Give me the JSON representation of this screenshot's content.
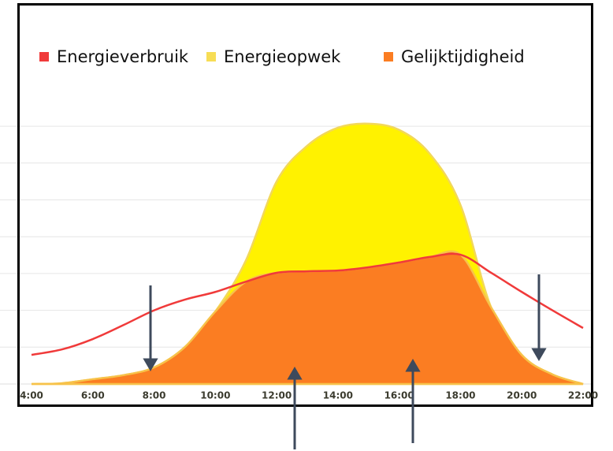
{
  "chart_data": {
    "type": "area",
    "x": [
      4,
      5,
      6,
      7,
      8,
      9,
      10,
      11,
      12,
      13,
      14,
      15,
      16,
      17,
      18,
      19,
      20,
      21,
      22
    ],
    "series": [
      {
        "name": "Energieverbruik",
        "color": "#f03a3a",
        "kind": "line",
        "values": [
          0.79,
          0.94,
          1.22,
          1.6,
          2.0,
          2.29,
          2.5,
          2.78,
          3.02,
          3.06,
          3.08,
          3.17,
          3.3,
          3.45,
          3.51,
          3.02,
          2.5,
          2.0,
          1.52
        ]
      },
      {
        "name": "Energieopwek",
        "color": "#fff200",
        "kind": "area",
        "values": [
          0,
          0.02,
          0.13,
          0.24,
          0.45,
          1.0,
          1.97,
          3.36,
          5.5,
          6.47,
          6.96,
          7.07,
          6.9,
          6.25,
          4.86,
          2.08,
          0.79,
          0.26,
          0
        ]
      },
      {
        "name": "Gelijktijdigheid",
        "color": "#fb7d22",
        "kind": "area",
        "values": [
          0,
          0.02,
          0.13,
          0.24,
          0.45,
          1.0,
          1.97,
          2.78,
          3.02,
          3.06,
          3.08,
          3.17,
          3.3,
          3.45,
          3.51,
          2.08,
          0.79,
          0.26,
          0
        ]
      }
    ],
    "xlim": [
      4,
      22
    ],
    "xticks": [
      {
        "value": 4,
        "label": "4:00"
      },
      {
        "value": 6,
        "label": "6:00"
      },
      {
        "value": 8,
        "label": "8:00"
      },
      {
        "value": 10,
        "label": "10:00"
      },
      {
        "value": 12,
        "label": "12:00"
      },
      {
        "value": 14,
        "label": "14:00"
      },
      {
        "value": 16,
        "label": "16:00"
      },
      {
        "value": 18,
        "label": "18:00"
      },
      {
        "value": 20,
        "label": "20:00"
      },
      {
        "value": 22,
        "label": "22:00"
      }
    ],
    "ylim": [
      0,
      7.5
    ],
    "yticks": [
      1,
      2,
      3,
      4,
      5,
      6,
      7
    ],
    "grid": true,
    "legend": "top-left"
  }
}
